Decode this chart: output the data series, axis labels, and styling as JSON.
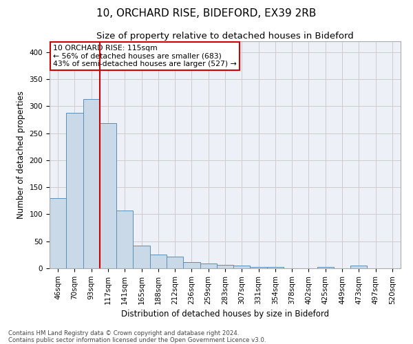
{
  "title1": "10, ORCHARD RISE, BIDEFORD, EX39 2RB",
  "title2": "Size of property relative to detached houses in Bideford",
  "xlabel": "Distribution of detached houses by size in Bideford",
  "ylabel": "Number of detached properties",
  "footer1": "Contains HM Land Registry data © Crown copyright and database right 2024.",
  "footer2": "Contains public sector information licensed under the Open Government Licence v3.0.",
  "annotation_line1": "10 ORCHARD RISE: 115sqm",
  "annotation_line2": "← 56% of detached houses are smaller (683)",
  "annotation_line3": "43% of semi-detached houses are larger (527) →",
  "bar_labels": [
    "46sqm",
    "70sqm",
    "93sqm",
    "117sqm",
    "141sqm",
    "165sqm",
    "188sqm",
    "212sqm",
    "236sqm",
    "259sqm",
    "283sqm",
    "307sqm",
    "331sqm",
    "354sqm",
    "378sqm",
    "402sqm",
    "425sqm",
    "449sqm",
    "473sqm",
    "497sqm",
    "520sqm"
  ],
  "bar_values": [
    130,
    288,
    313,
    268,
    107,
    42,
    25,
    22,
    11,
    9,
    7,
    5,
    3,
    3,
    0,
    0,
    2,
    0,
    5,
    0,
    0
  ],
  "bar_color": "#c9d9e8",
  "bar_edge_color": "#5b8db8",
  "vline_index": 3,
  "vline_color": "#cc0000",
  "annotation_box_color": "#cc0000",
  "ylim": [
    0,
    420
  ],
  "yticks": [
    0,
    50,
    100,
    150,
    200,
    250,
    300,
    350,
    400
  ],
  "grid_color": "#cccccc",
  "bg_color": "#eef0f8",
  "title_fontsize": 11,
  "subtitle_fontsize": 9.5,
  "tick_fontsize": 7.5,
  "label_fontsize": 8.5
}
